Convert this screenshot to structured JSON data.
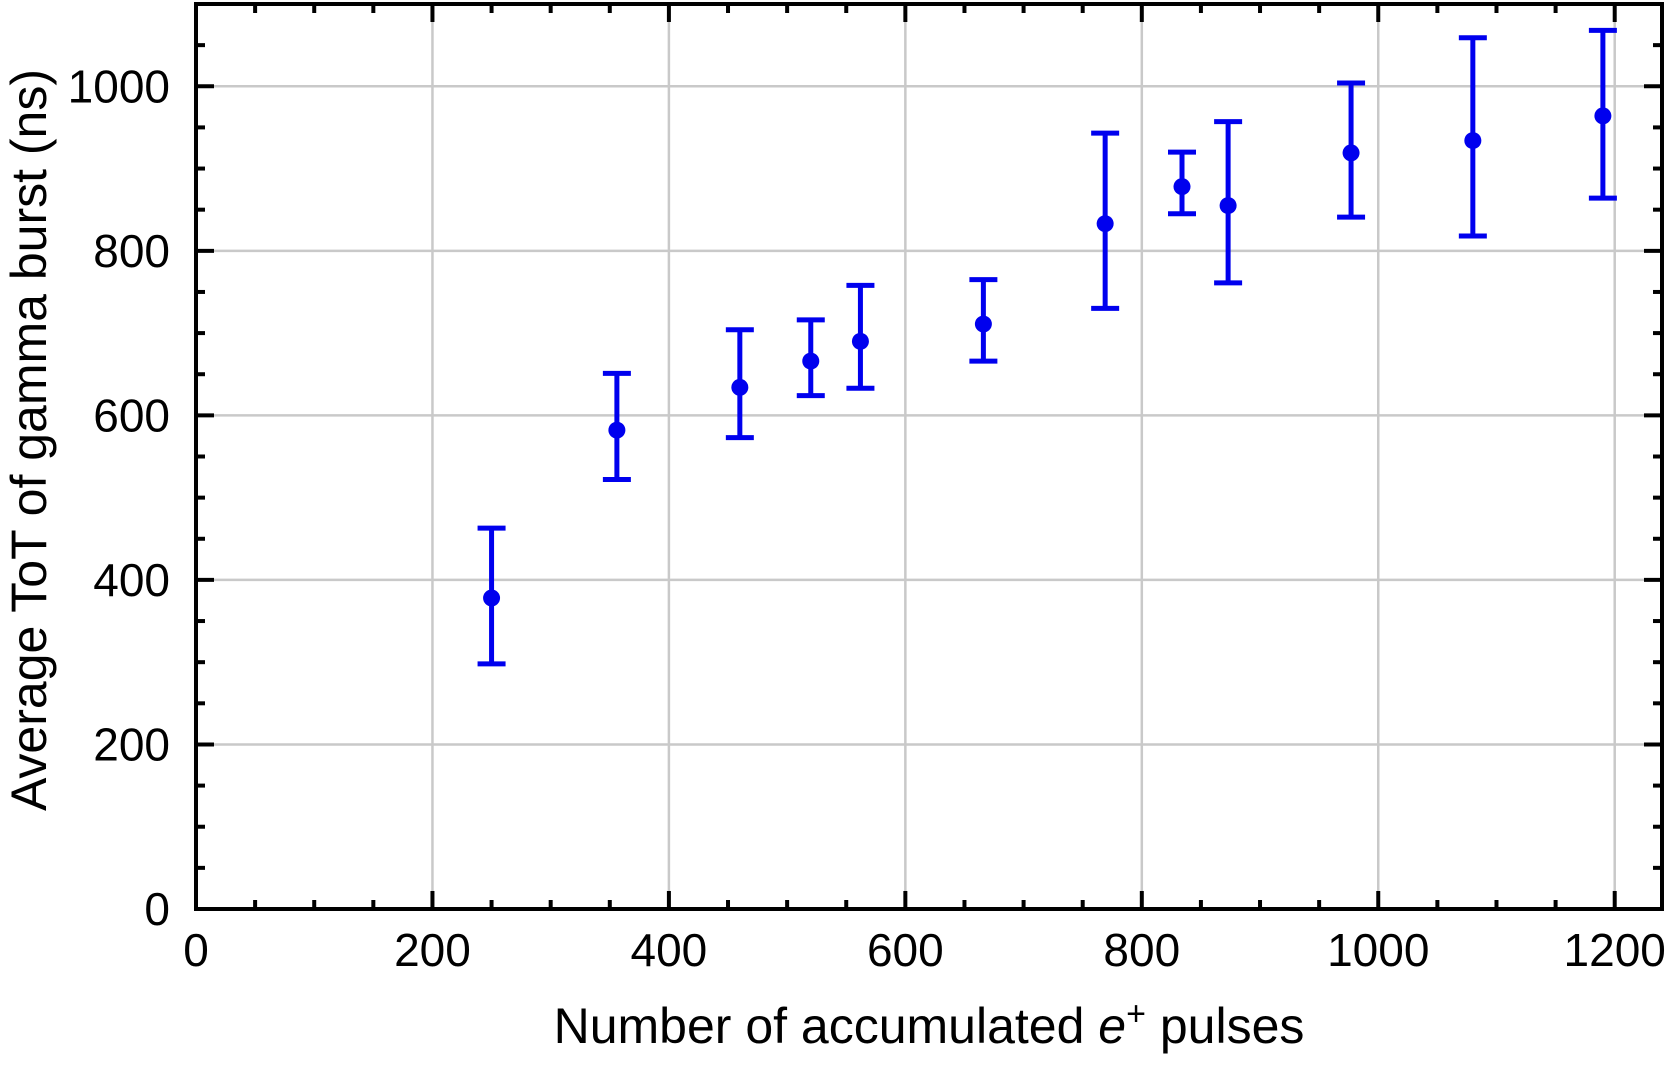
{
  "figure": {
    "background": "#ffffff"
  },
  "chart_data": {
    "type": "scatter",
    "subtype": "errorbar",
    "title": "",
    "xlabel": "Number of accumulated e+ pulses",
    "xlabel_parts": {
      "prefix": "Number of accumulated ",
      "symbol_italic": "e",
      "symbol_superscript": "+",
      "suffix": " pulses"
    },
    "ylabel": "Average ToT of gamma burst (ns)",
    "xlim": [
      0,
      1240
    ],
    "ylim": [
      0,
      1100
    ],
    "x_major_ticks": [
      0,
      200,
      400,
      600,
      800,
      1000,
      1200
    ],
    "y_major_ticks": [
      0,
      200,
      400,
      600,
      800,
      1000
    ],
    "minor_tick_step_x": 50,
    "minor_tick_step_y": 50,
    "grid": true,
    "legend": false,
    "colors": {
      "series": "#0000ee",
      "grid": "#c9c9c9",
      "axis": "#000000",
      "background": "#ffffff"
    },
    "series": [
      {
        "name": "average-tot-vs-pulses",
        "marker": "circle",
        "points": [
          {
            "x": 250,
            "y": 378,
            "y_low": 298,
            "y_high": 463
          },
          {
            "x": 356,
            "y": 582,
            "y_low": 522,
            "y_high": 651
          },
          {
            "x": 460,
            "y": 634,
            "y_low": 573,
            "y_high": 704
          },
          {
            "x": 520,
            "y": 666,
            "y_low": 624,
            "y_high": 716
          },
          {
            "x": 562,
            "y": 690,
            "y_low": 633,
            "y_high": 758
          },
          {
            "x": 666,
            "y": 711,
            "y_low": 666,
            "y_high": 765
          },
          {
            "x": 769,
            "y": 833,
            "y_low": 730,
            "y_high": 943
          },
          {
            "x": 834,
            "y": 878,
            "y_low": 845,
            "y_high": 920
          },
          {
            "x": 873,
            "y": 855,
            "y_low": 761,
            "y_high": 957
          },
          {
            "x": 977,
            "y": 919,
            "y_low": 841,
            "y_high": 1004
          },
          {
            "x": 1080,
            "y": 934,
            "y_low": 818,
            "y_high": 1059
          },
          {
            "x": 1190,
            "y": 964,
            "y_low": 864,
            "y_high": 1068
          }
        ]
      }
    ]
  }
}
